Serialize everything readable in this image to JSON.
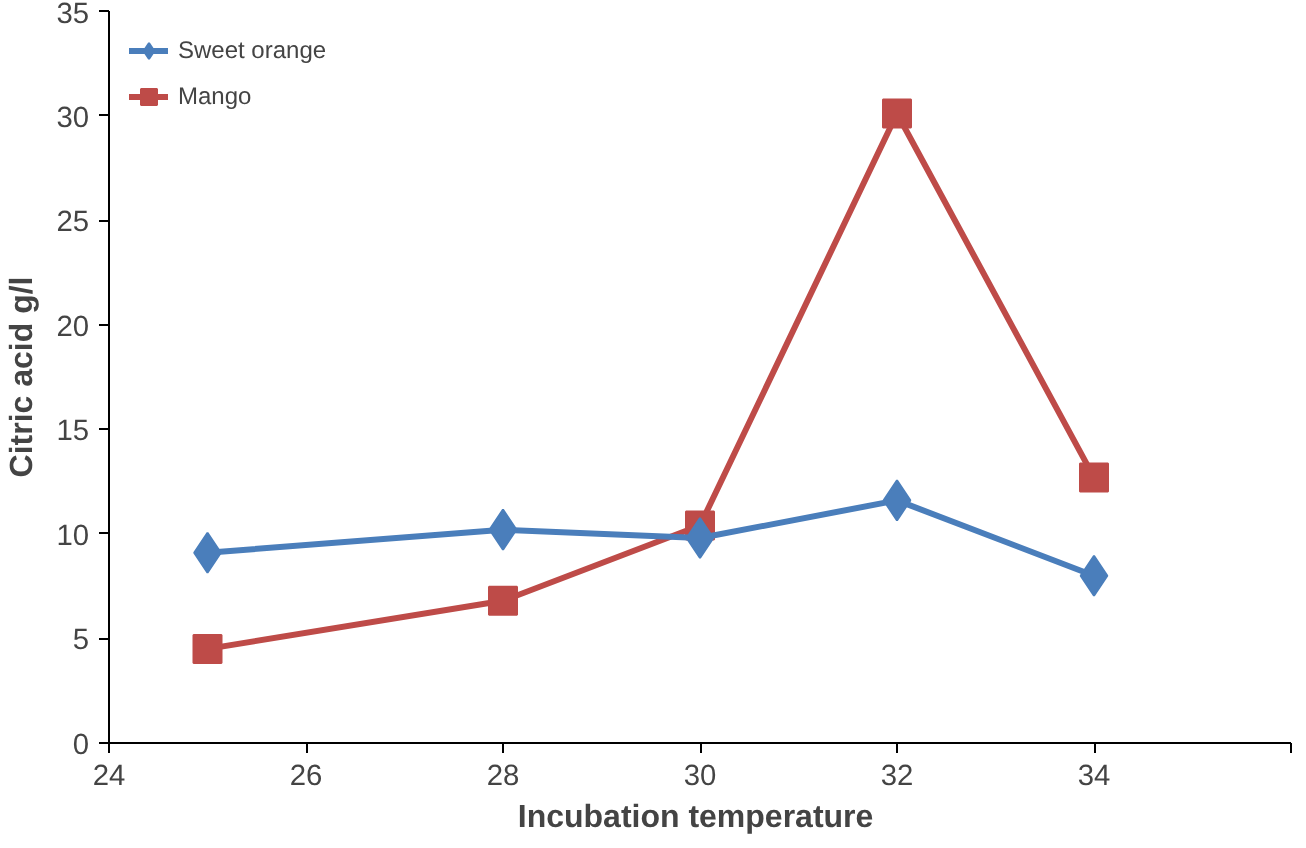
{
  "chart_data": {
    "type": "line",
    "xlabel": "Incubation  temperature",
    "ylabel": "Citric acid g/l",
    "x": [
      25,
      28,
      30,
      32,
      34
    ],
    "series": [
      {
        "name": "Sweet orange",
        "color": "#4a7ebb",
        "marker": "diamond",
        "values": [
          9.1,
          10.2,
          9.8,
          11.6,
          8.0
        ]
      },
      {
        "name": "Mango",
        "color": "#be4b48",
        "marker": "square",
        "values": [
          4.5,
          6.8,
          10.4,
          30.1,
          12.7
        ]
      }
    ],
    "xlim": [
      24,
      36
    ],
    "xticks": [
      24,
      26,
      28,
      30,
      32,
      34,
      {
        "value": 36,
        "label": null
      }
    ],
    "ylim": [
      0,
      35
    ],
    "yticks": [
      0,
      5,
      10,
      15,
      20,
      25,
      30,
      35
    ],
    "grid": false,
    "legend": "top left"
  }
}
